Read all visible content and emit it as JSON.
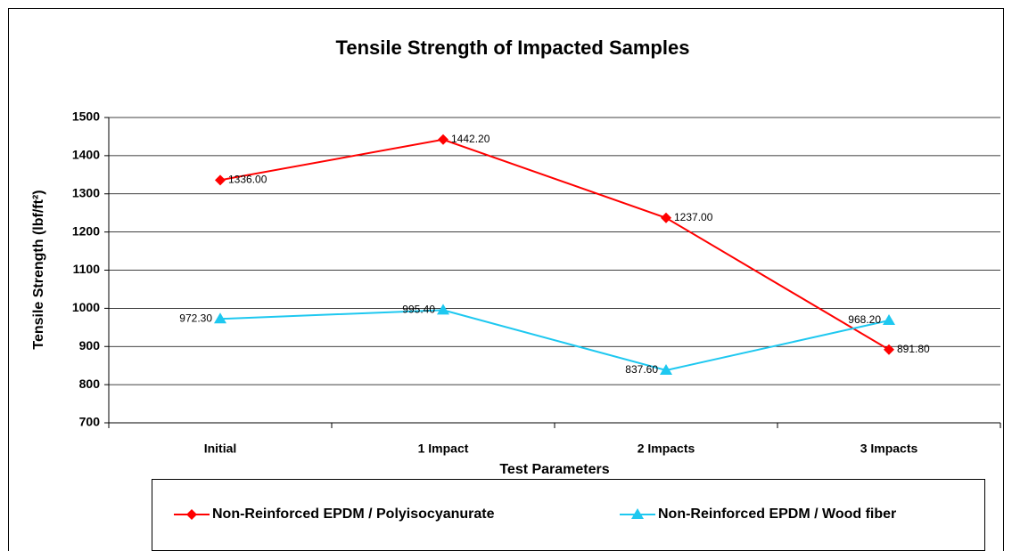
{
  "chart_data": {
    "type": "line",
    "title": "Tensile Strength of Impacted Samples",
    "x_label": "Test Parameters",
    "y_label": "Tensile Strength (lbf/ft²)",
    "categories": [
      "Initial",
      "1 Impact",
      "2 Impacts",
      "3 Impacts"
    ],
    "series": [
      {
        "name": "Non-Reinforced EPDM / Polyisocyanurate",
        "color": "#ff0000",
        "marker": "diamond",
        "values": [
          1336,
          1442.2,
          1237,
          891.8
        ],
        "value_labels": [
          "1336.00",
          "1442.20",
          "1237.00",
          "891.80"
        ]
      },
      {
        "name": "Non-Reinforced EPDM / Wood fiber",
        "color": "#1ec8f0",
        "marker": "triangle",
        "values": [
          972.3,
          995.4,
          837.6,
          968.2
        ],
        "value_labels": [
          "972.30",
          "995.40",
          "837.60",
          "968.20"
        ]
      }
    ],
    "ylim": [
      700,
      1500
    ],
    "yticks": [
      700,
      800,
      900,
      1000,
      1100,
      1200,
      1300,
      1400,
      1500
    ],
    "grid": true,
    "legend": "bottom"
  }
}
